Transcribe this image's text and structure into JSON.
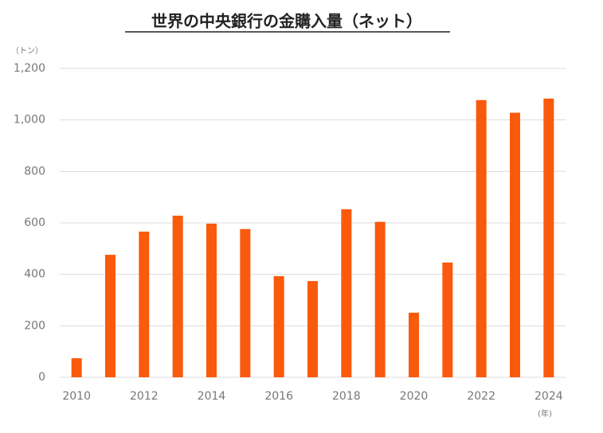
{
  "chart_data": {
    "type": "bar",
    "title": "世界の中央銀行の金購入量（ネット）",
    "y_label": "（トン）",
    "x_label": "(年)",
    "categories": [
      "2010",
      null,
      "2012",
      null,
      "2014",
      null,
      "2016",
      null,
      "2018",
      null,
      "2020",
      null,
      "2022",
      null,
      "2024"
    ],
    "values": [
      74,
      476,
      566,
      628,
      597,
      576,
      393,
      374,
      653,
      604,
      251,
      446,
      1077,
      1028,
      1083
    ],
    "color": "#fa5a0c",
    "ylim": [
      0,
      1200
    ],
    "yticks": [
      0,
      200,
      400,
      600,
      800,
      {
        "value": 1000,
        "label": "1,000"
      },
      {
        "value": 1200,
        "label": "1,200"
      }
    ],
    "grid": true
  }
}
